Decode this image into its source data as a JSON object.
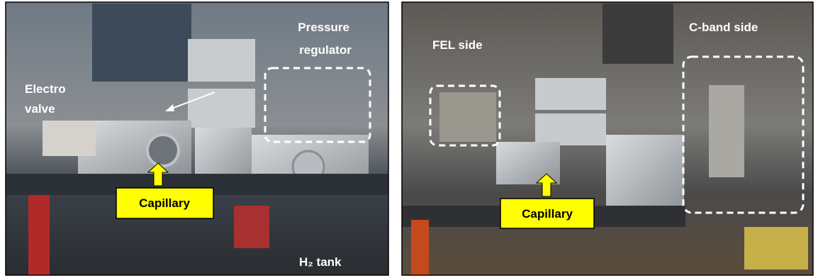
{
  "left_panel": {
    "pressure_regulator": [
      "Pressure",
      "regulator"
    ],
    "electro_valve": [
      "Electro",
      "valve"
    ],
    "capillary": "Capillary",
    "h2_tank": "H₂ tank"
  },
  "right_panel": {
    "fel_side": "FEL side",
    "c_band_side": "C-band side",
    "capillary": "Capillary"
  }
}
